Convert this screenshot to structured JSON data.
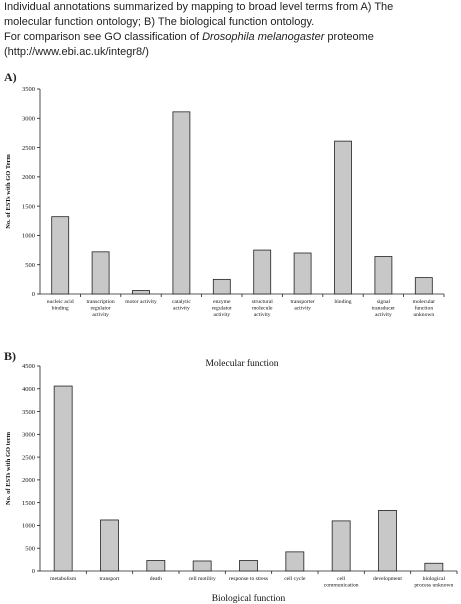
{
  "caption": {
    "line1": "Individual annotations summarized by mapping to broad level terms from A)  The",
    "line2": "molecular function ontology; B) The biological function ontology.",
    "line3a": "For comparison see GO classification of ",
    "line3b": "Drosophila melanogaster",
    "line3c": "  proteome",
    "line4": "(http://www.ebi.ac.uk/integr8/)"
  },
  "panels": {
    "a": "A)",
    "b": "B)"
  },
  "chart_data": [
    {
      "type": "bar",
      "panel": "A)",
      "categories": [
        [
          "nucleic acid",
          "binding"
        ],
        [
          "transcription",
          "regulator",
          "activity"
        ],
        [
          "motor activity"
        ],
        [
          "catalytic",
          "activity"
        ],
        [
          "enzyme",
          "regulator",
          "activity"
        ],
        [
          "structural",
          "molecule",
          "activity"
        ],
        [
          "transporter",
          "activity"
        ],
        [
          "binding"
        ],
        [
          "signal",
          "transducer",
          "activity"
        ],
        [
          "molecular",
          "function",
          "unknown"
        ]
      ],
      "values": [
        1320,
        720,
        60,
        3110,
        250,
        750,
        700,
        2610,
        640,
        280
      ],
      "xlabel": "Molecular function",
      "ylabel": "No. of ESTs with GO Term",
      "ylim": [
        0,
        3500
      ],
      "yticks": [
        0,
        500,
        1000,
        1500,
        2000,
        2500,
        3000,
        3500
      ],
      "grid": false,
      "bar_color": "#c8c8c8"
    },
    {
      "type": "bar",
      "panel": "B)",
      "categories": [
        [
          "metabolism"
        ],
        [
          "transport"
        ],
        [
          "death"
        ],
        [
          "cell motility"
        ],
        [
          "response to stress"
        ],
        [
          "cell cycle"
        ],
        [
          "cell",
          "communication"
        ],
        [
          "development"
        ],
        [
          "biological",
          "process unknown"
        ]
      ],
      "values": [
        4060,
        1120,
        230,
        220,
        230,
        420,
        1100,
        1330,
        170
      ],
      "xlabel": "Biological function",
      "ylabel": "No. of ESTs with GO term",
      "ylim": [
        0,
        4500
      ],
      "yticks": [
        0,
        500,
        1000,
        1500,
        2000,
        2500,
        3000,
        3500,
        4000,
        4500
      ],
      "grid": false,
      "bar_color": "#c8c8c8"
    }
  ]
}
